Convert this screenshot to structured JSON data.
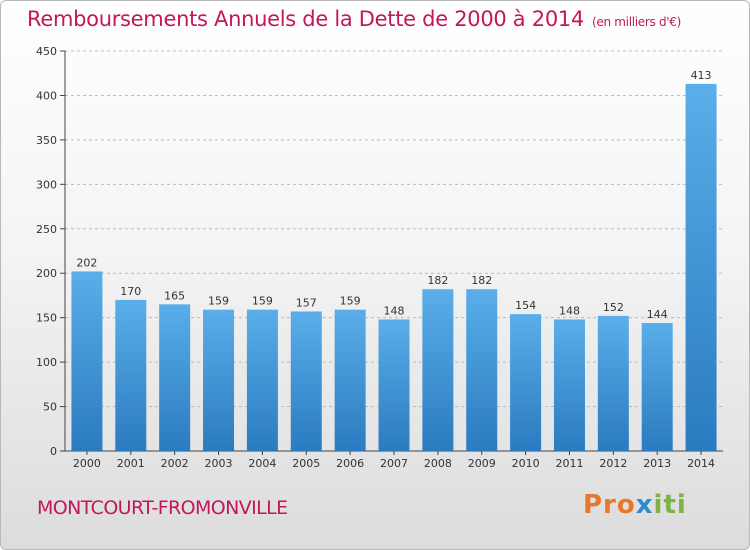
{
  "header": {
    "title": "Remboursements Annuels de la Dette de 2000 à 2014",
    "unit": "(en milliers d'€)"
  },
  "footer": {
    "town": "MONTCOURT-FROMONVILLE",
    "logo_part1": "Pro",
    "logo_part2": "x",
    "logo_part3": "iti"
  },
  "colors": {
    "bar_top": "#5aaee9",
    "bar_bottom": "#2a7bc0",
    "title": "#c2185b",
    "grid": "#bbbbbb"
  },
  "chart_data": {
    "type": "bar",
    "title": "Remboursements Annuels de la Dette de 2000 à 2014",
    "subtitle": "(en milliers d'€)",
    "xlabel": "",
    "ylabel": "",
    "categories": [
      "2000",
      "2001",
      "2002",
      "2003",
      "2004",
      "2005",
      "2006",
      "2007",
      "2008",
      "2009",
      "2010",
      "2011",
      "2012",
      "2013",
      "2014"
    ],
    "values": [
      202,
      170,
      165,
      159,
      159,
      157,
      159,
      148,
      182,
      182,
      154,
      148,
      152,
      144,
      413
    ],
    "ylim": [
      0,
      450
    ],
    "yticks": [
      0,
      50,
      100,
      150,
      200,
      250,
      300,
      350,
      400,
      450
    ],
    "grid": true,
    "grid_style": "dashed horizontal",
    "data_labels": true
  }
}
